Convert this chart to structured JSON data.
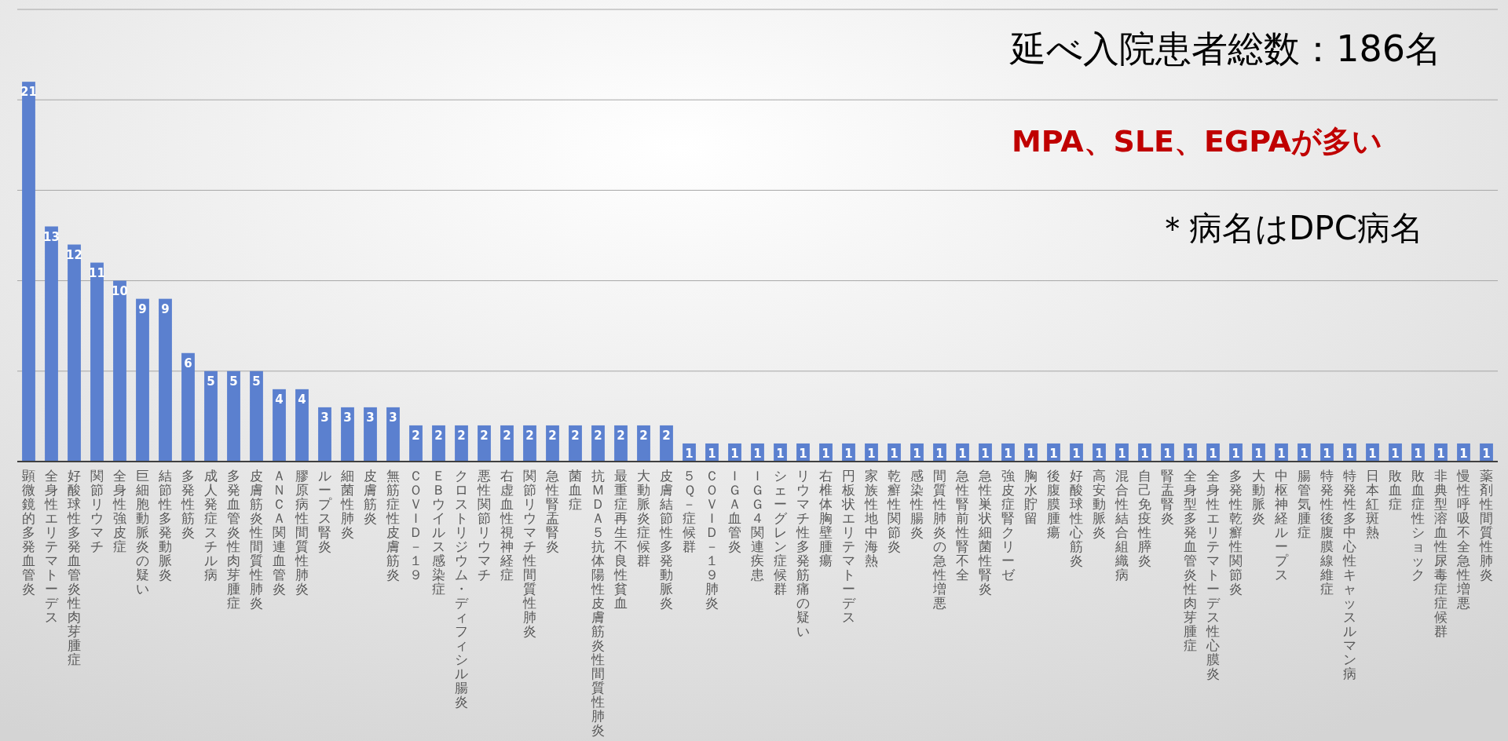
{
  "chart_data": {
    "type": "bar",
    "categories": [
      "顕微鏡的多発血管炎",
      "全身性エリテマトーデス",
      "好酸球性多発血管炎性肉芽腫症",
      "関節リウマチ",
      "全身性強皮症",
      "巨細胞動脈炎の疑い",
      "結節性多発動脈炎",
      "多発性筋炎",
      "成人発症スチル病",
      "多発血管炎性肉芽腫症",
      "皮膚筋炎性間質性肺炎",
      "ＡＮＣＡ関連血管炎",
      "膠原病性間質性肺炎",
      "ループス腎炎",
      "細菌性肺炎",
      "皮膚筋炎",
      "無筋症性皮膚筋炎",
      "ＣＯＶＩＤ－１９",
      "ＥＢウイルス感染症",
      "クロストリジウム・ディフィシル腸炎",
      "悪性関節リウマチ",
      "右虚血性視神経症",
      "関節リウマチ性間質性肺炎",
      "急性腎盂腎炎",
      "菌血症",
      "抗ＭＤＡ５抗体陽性皮膚筋炎性間質性肺炎",
      "最重症再生不良性貧血",
      "大動脈炎症候群",
      "皮膚結節性多発動脈炎",
      "５Ｑ－症候群",
      "ＣＯＶＩＤ－１９肺炎",
      "ＩＧＡ血管炎",
      "ＩＧＧ４関連疾患",
      "シェーグレン症候群",
      "リウマチ性多発筋痛の疑い",
      "右椎体胸壁腫瘍",
      "円板状エリテマトーデス",
      "家族性地中海熱",
      "乾癬性関節炎",
      "感染性腸炎",
      "間質性肺炎の急性増悪",
      "急性腎前性腎不全",
      "急性巣状細菌性腎炎",
      "強皮症腎クリーゼ",
      "胸水貯留",
      "後腹膜腫瘍",
      "好酸球性心筋炎",
      "高安動脈炎",
      "混合性結合組織病",
      "自己免疫性膵炎",
      "腎盂腎炎",
      "全身型多発血管炎性肉芽腫症",
      "全身性エリテマトーデス性心膜炎",
      "多発性乾癬性関節炎",
      "大動脈炎",
      "中枢神経ループス",
      "腸管気腫症",
      "特発性後腹膜線維症",
      "特発性多中心性キャッスルマン病",
      "日本紅斑熱",
      "敗血症",
      "敗血症性ショック",
      "非典型溶血性尿毒症症候群",
      "慢性呼吸不全急性増悪",
      "薬剤性間質性肺炎"
    ],
    "values": [
      21,
      13,
      12,
      11,
      10,
      9,
      9,
      6,
      5,
      5,
      5,
      4,
      4,
      3,
      3,
      3,
      3,
      2,
      2,
      2,
      2,
      2,
      2,
      2,
      2,
      2,
      2,
      2,
      2,
      1,
      1,
      1,
      1,
      1,
      1,
      1,
      1,
      1,
      1,
      1,
      1,
      1,
      1,
      1,
      1,
      1,
      1,
      1,
      1,
      1,
      1,
      1,
      1,
      1,
      1,
      1,
      1,
      1,
      1,
      1,
      1,
      1,
      1,
      1,
      1
    ],
    "color": "#5b80cf",
    "ylim": [
      0,
      25
    ],
    "yticks": [
      {
        "value": 0,
        "label": null
      },
      {
        "value": 5,
        "label": null
      },
      {
        "value": 10,
        "label": null
      },
      {
        "value": 15,
        "label": null
      },
      {
        "value": 20,
        "label": null
      },
      {
        "value": 25,
        "label": null
      }
    ],
    "grid": "y",
    "tick_labels": "x",
    "data_labels": true,
    "annotations": [
      "延べ入院患者総数：186名",
      "MPA、SLE、EGPAが多い",
      "＊病名はDPC病名"
    ]
  }
}
